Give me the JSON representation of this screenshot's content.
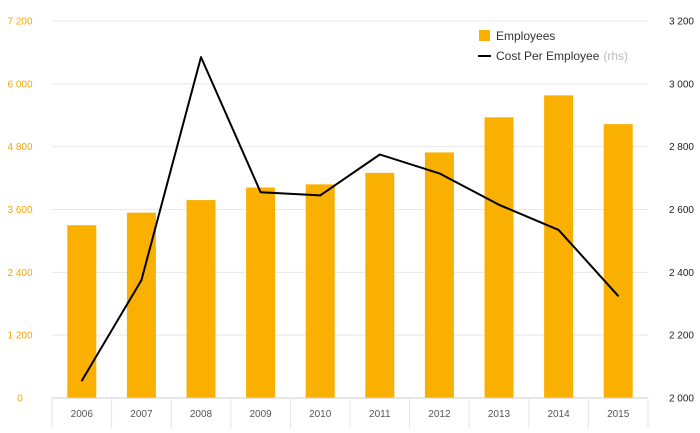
{
  "chart_data": {
    "type": "bar",
    "categories": [
      "2006",
      "2007",
      "2008",
      "2009",
      "2010",
      "2011",
      "2012",
      "2013",
      "2014",
      "2015"
    ],
    "series": [
      {
        "name": "Employees",
        "type": "bar",
        "axis": "left",
        "color": "#f9b000",
        "values": [
          3300,
          3540,
          3780,
          4020,
          4080,
          4300,
          4690,
          5360,
          5780,
          5230
        ]
      },
      {
        "name": "Cost Per Employee",
        "type": "line",
        "axis": "right",
        "color": "#000000",
        "values": [
          2055,
          2375,
          3085,
          2655,
          2645,
          2775,
          2715,
          2615,
          2535,
          2325
        ]
      }
    ],
    "y_left": {
      "min": 0,
      "max": 7200,
      "ticks": [
        "0",
        "1 200",
        "2 400",
        "3 600",
        "4 800",
        "6 000",
        "7 200"
      ],
      "color": "#f5a800"
    },
    "y_right": {
      "min": 2000,
      "max": 3200,
      "ticks": [
        "2 000",
        "2 200",
        "2 400",
        "2 600",
        "2 800",
        "3 000",
        "3 200"
      ]
    },
    "grid": true,
    "legend": {
      "placement": "top-right",
      "items": [
        {
          "label": "Employees",
          "suffix": "",
          "marker": "square",
          "color": "#f9b000"
        },
        {
          "label": "Cost Per Employee",
          "suffix": "(rhs)",
          "marker": "line",
          "color": "#000000"
        }
      ]
    }
  }
}
